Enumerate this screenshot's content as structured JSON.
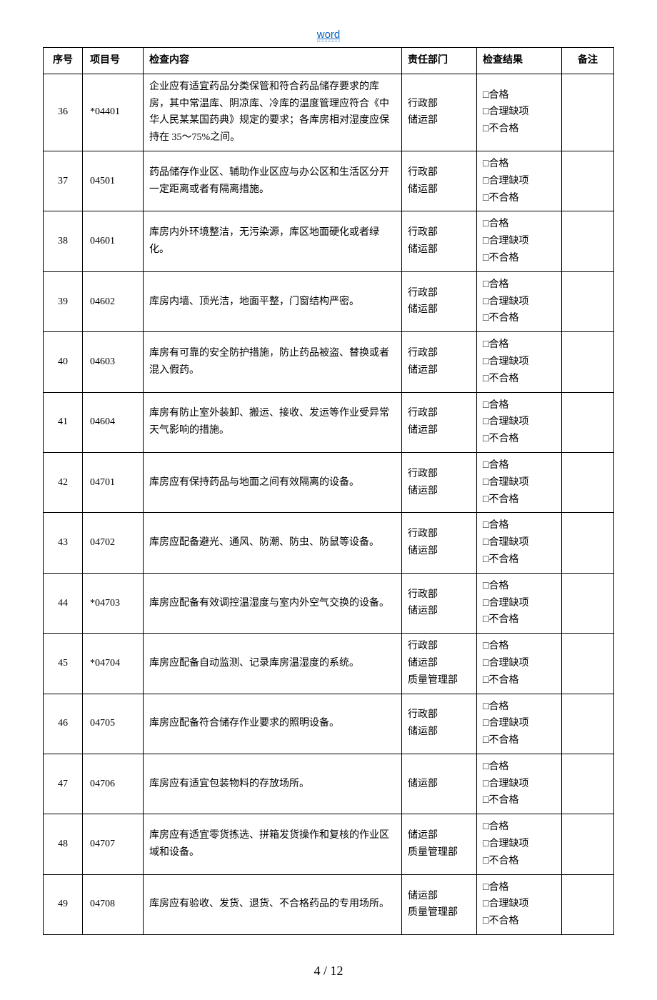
{
  "header": {
    "link_text": "word"
  },
  "table": {
    "headers": {
      "seq": "序号",
      "item": "项目号",
      "content": "检查内容",
      "dept": "责任部门",
      "result": "检查结果",
      "remark": "备注"
    },
    "result_options": [
      "□合格",
      "□合理缺项",
      "□不合格"
    ],
    "rows": [
      {
        "seq": "36",
        "item": "*04401",
        "content": "企业应有适宜药品分类保管和符合药品储存要求的库房，其中常温库、阴凉库、冷库的温度管理应符合《中华人民某某国药典》规定的要求；各库房相对湿度应保持在 35～75%之间。",
        "dept": [
          "行政部",
          "储运部"
        ]
      },
      {
        "seq": "37",
        "item": "04501",
        "content": "药品储存作业区、辅助作业区应与办公区和生活区分开一定距离或者有隔离措施。",
        "dept": [
          "行政部",
          "储运部"
        ]
      },
      {
        "seq": "38",
        "item": "04601",
        "content": "库房内外环境整洁，无污染源，库区地面硬化或者绿化。",
        "dept": [
          "行政部",
          "储运部"
        ]
      },
      {
        "seq": "39",
        "item": "04602",
        "content": "库房内墙、顶光洁，地面平整，门窗结构严密。",
        "dept": [
          "行政部",
          "储运部"
        ]
      },
      {
        "seq": "40",
        "item": "04603",
        "content": "库房有可靠的安全防护措施，防止药品被盗、替换或者混入假药。",
        "dept": [
          "行政部",
          "储运部"
        ]
      },
      {
        "seq": "41",
        "item": "04604",
        "content": "库房有防止室外装卸、搬运、接收、发运等作业受异常天气影响的措施。",
        "dept": [
          "行政部",
          "储运部"
        ]
      },
      {
        "seq": "42",
        "item": "04701",
        "content": "库房应有保持药品与地面之间有效隔离的设备。",
        "dept": [
          "行政部",
          "储运部"
        ]
      },
      {
        "seq": "43",
        "item": "04702",
        "content": "库房应配备避光、通风、防潮、防虫、防鼠等设备。",
        "dept": [
          "行政部",
          "储运部"
        ]
      },
      {
        "seq": "44",
        "item": "*04703",
        "content": "库房应配备有效调控温湿度与室内外空气交换的设备。",
        "dept": [
          "行政部",
          "储运部"
        ]
      },
      {
        "seq": "45",
        "item": "*04704",
        "content": "库房应配备自动监测、记录库房温湿度的系统。",
        "dept": [
          "行政部",
          "储运部",
          "质量管理部"
        ]
      },
      {
        "seq": "46",
        "item": "04705",
        "content": "库房应配备符合储存作业要求的照明设备。",
        "dept": [
          "行政部",
          "储运部"
        ]
      },
      {
        "seq": "47",
        "item": "04706",
        "content": "库房应有适宜包装物料的存放场所。",
        "dept": [
          "储运部"
        ]
      },
      {
        "seq": "48",
        "item": "04707",
        "content": "库房应有适宜零货拣选、拼箱发货操作和复核的作业区域和设备。",
        "dept": [
          "储运部",
          "质量管理部"
        ]
      },
      {
        "seq": "49",
        "item": "04708",
        "content": "库房应有验收、发货、退货、不合格药品的专用场所。",
        "dept": [
          "储运部",
          "质量管理部"
        ]
      }
    ]
  },
  "footer": {
    "page": "4",
    "sep": "/",
    "total": "12"
  }
}
